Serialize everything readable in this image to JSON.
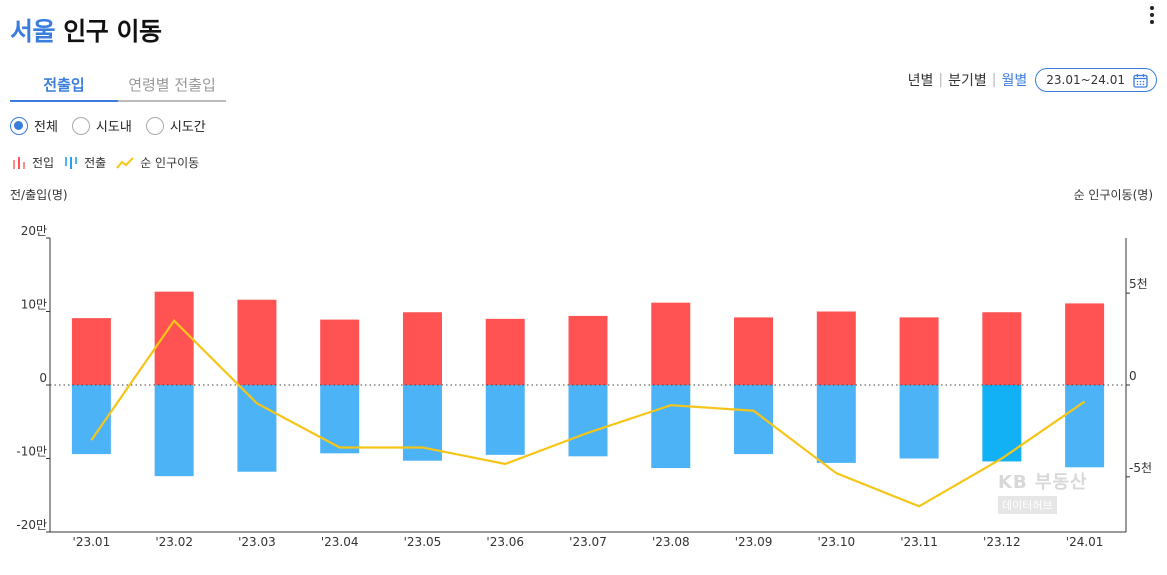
{
  "header": {
    "title_city": "서울",
    "title_rest": "인구 이동"
  },
  "tabs": [
    {
      "label": "전출입",
      "active": true
    },
    {
      "label": "연령별 전출입",
      "active": false
    }
  ],
  "period": {
    "options": [
      {
        "label": "년별",
        "active": false
      },
      {
        "label": "분기별",
        "active": false
      },
      {
        "label": "월별",
        "active": true
      }
    ],
    "range_label": "23.01~24.01"
  },
  "filters": [
    {
      "label": "전체",
      "selected": true
    },
    {
      "label": "시도내",
      "selected": false
    },
    {
      "label": "시도간",
      "selected": false
    }
  ],
  "legend": [
    {
      "label": "전입",
      "color": "#ff5252",
      "icon": "bar-chart-icon"
    },
    {
      "label": "전출",
      "color": "#4db3f7",
      "icon": "bar-chart-icon"
    },
    {
      "label": "순 인구이동",
      "color": "#f5c518",
      "icon": "line-chart-icon"
    }
  ],
  "axis_titles": {
    "left": "전/출입(명)",
    "right": "순 인구이동(명)"
  },
  "watermark": {
    "line1": "KB 부동산",
    "line2": "데이터허브"
  },
  "chart_data": {
    "type": "bar",
    "categories": [
      "'23.01",
      "'23.02",
      "'23.03",
      "'23.04",
      "'23.05",
      "'23.06",
      "'23.07",
      "'23.08",
      "'23.09",
      "'23.10",
      "'23.11",
      "'23.12",
      "'24.01"
    ],
    "series": [
      {
        "name": "전입",
        "type": "bar",
        "axis": "left",
        "color": "#ff5252",
        "values": [
          91000,
          127000,
          116000,
          89000,
          99000,
          90000,
          94000,
          112000,
          92000,
          100000,
          92000,
          99000,
          111000
        ]
      },
      {
        "name": "전출",
        "type": "bar",
        "axis": "left",
        "color": "#4db3f7",
        "values": [
          -94000,
          -124000,
          -118000,
          -93000,
          -103000,
          -95000,
          -97000,
          -113000,
          -94000,
          -106000,
          -100000,
          -104000,
          -112000
        ]
      },
      {
        "name": "순 인구이동",
        "type": "line",
        "axis": "right",
        "color": "#f5c518",
        "values": [
          -3000,
          3500,
          -1000,
          -3400,
          -3400,
          -4300,
          -2600,
          -1100,
          -1400,
          -4800,
          -6600,
          -4000,
          -900
        ]
      }
    ],
    "highlight_index": 11,
    "highlight_color": "#12b1f5",
    "left_axis": {
      "ylim": [
        -200000,
        200000
      ],
      "ticks": [
        200000,
        100000,
        0,
        -100000,
        -200000
      ],
      "tick_labels": [
        "20만",
        "10만",
        "0",
        "-10만",
        "-20만"
      ]
    },
    "right_axis": {
      "ylim": [
        -8000,
        8000
      ],
      "ticks": [
        5000,
        0,
        -5000
      ],
      "tick_labels": [
        "5천",
        "0",
        "-5천"
      ]
    },
    "zero_line": "dotted",
    "grid": false
  }
}
